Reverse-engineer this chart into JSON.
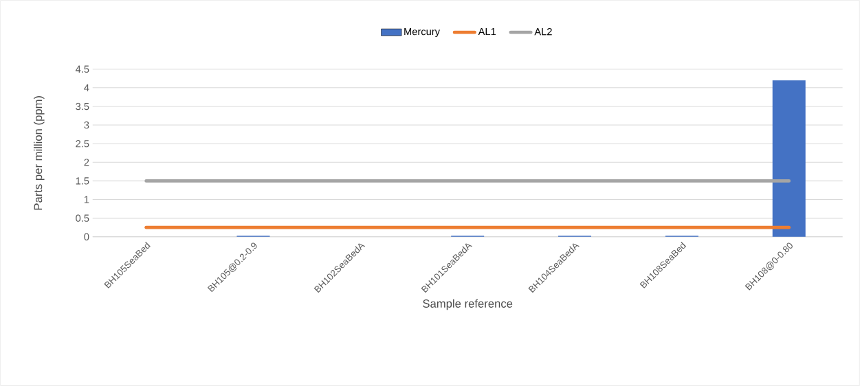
{
  "chart_data": {
    "type": "bar",
    "xlabel": "Sample reference",
    "ylabel": "Parts per million (ppm)",
    "categories": [
      "BH105SeaBed",
      "BH105@0.2-0.9",
      "BH102SeaBedA",
      "BH101SeaBedA",
      "BH104SeaBedA",
      "BH108SeaBed",
      "BH108@0-0.80"
    ],
    "series": [
      {
        "name": "Mercury",
        "color": "#4472c4",
        "values": [
          0,
          0.03,
          0,
          0.03,
          0.03,
          0.03,
          4.2
        ]
      },
      {
        "name": "AL1",
        "type": "line",
        "color": "#ed7d31",
        "values": [
          0.25,
          0.25,
          0.25,
          0.25,
          0.25,
          0.25,
          0.25
        ]
      },
      {
        "name": "AL2",
        "type": "line",
        "color": "#a5a5a5",
        "values": [
          1.5,
          1.5,
          1.5,
          1.5,
          1.5,
          1.5,
          1.5
        ]
      }
    ],
    "ylim": [
      0,
      4.5
    ],
    "yticks": [
      0,
      0.5,
      1,
      1.5,
      2,
      2.5,
      3,
      3.5,
      4,
      4.5
    ],
    "grid": "y",
    "legend": "top",
    "marker": "none"
  }
}
